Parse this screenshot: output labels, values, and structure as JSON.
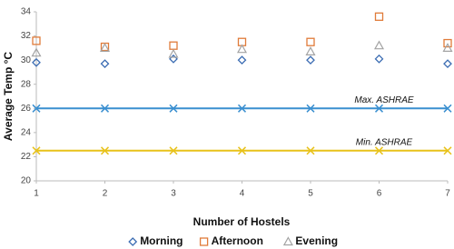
{
  "chart_data": {
    "type": "scatter",
    "x_label": "Number of Hostels",
    "y_label": "Average Temp °C",
    "x": [
      1,
      2,
      3,
      4,
      5,
      6,
      7
    ],
    "xlim": [
      1,
      7
    ],
    "xticks": [
      1,
      2,
      3,
      4,
      5,
      6,
      7
    ],
    "ylim": [
      20,
      34
    ],
    "yticks": [
      20,
      22,
      24,
      26,
      28,
      30,
      32,
      34
    ],
    "grid": false,
    "legend": "bottom",
    "series": [
      {
        "name": "Morning",
        "color": "#3c6db3",
        "marker": "diamond",
        "values": [
          29.8,
          29.7,
          30.1,
          30.0,
          30.0,
          30.1,
          29.7
        ]
      },
      {
        "name": "Afternoon",
        "color": "#e07b39",
        "marker": "square",
        "values": [
          31.6,
          31.1,
          31.2,
          31.5,
          31.5,
          33.6,
          31.4
        ]
      },
      {
        "name": "Evening",
        "color": "#a3a3a3",
        "marker": "triangle",
        "values": [
          30.6,
          31.0,
          30.5,
          30.9,
          30.7,
          31.2,
          31.0
        ]
      },
      {
        "name": "Max. ASHRAE",
        "color": "#3a8fd0",
        "marker": "x",
        "line": true,
        "legend": false,
        "values": [
          26,
          26,
          26,
          26,
          26,
          26,
          26
        ]
      },
      {
        "name": "Min. ASHRAE",
        "color": "#e8c21a",
        "marker": "x",
        "line": true,
        "legend": false,
        "values": [
          22.5,
          22.5,
          22.5,
          22.5,
          22.5,
          22.5,
          22.5
        ]
      }
    ]
  }
}
